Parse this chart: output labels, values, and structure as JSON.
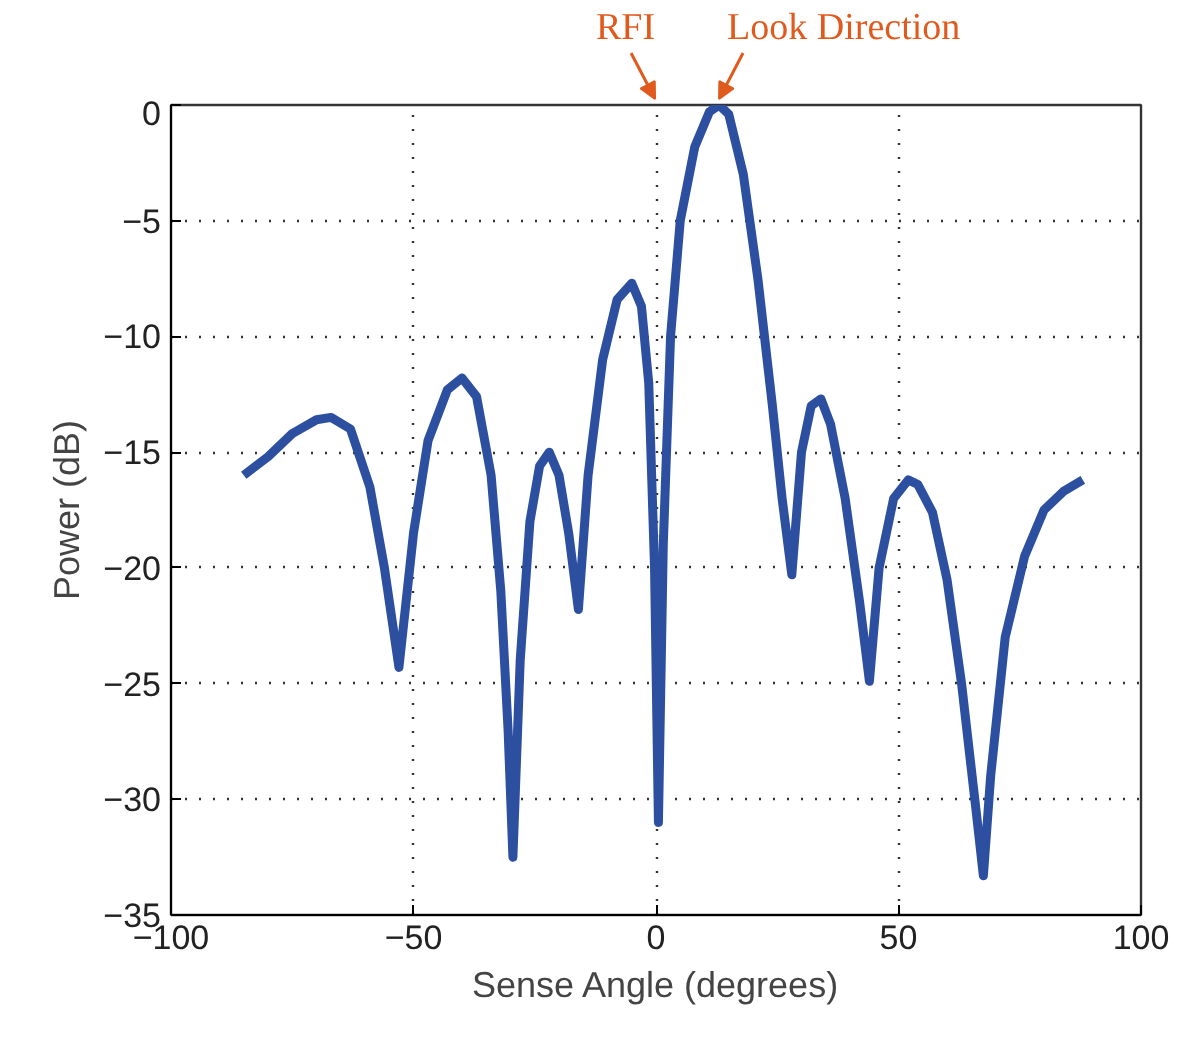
{
  "chart_data": {
    "type": "line",
    "xlabel": "Sense Angle (degrees)",
    "ylabel": "Power (dB)",
    "xlim": [
      -100,
      100
    ],
    "xticks": [
      -100,
      -50,
      0,
      50,
      100
    ],
    "ylim": [
      -35,
      0
    ],
    "yticks": [
      -35,
      -30,
      -25,
      -20,
      -15,
      -10,
      -5,
      0
    ],
    "grid": true,
    "marker": "none",
    "line_style": "solid",
    "annotations": [
      "RFI",
      {
        "text": "Look Direction",
        "x": 13,
        "y": 0
      }
    ],
    "series": [
      {
        "color": "#2c4fa0",
        "x": [
          -85,
          -80,
          -75,
          -70,
          -67,
          -63,
          -59,
          -56,
          -53,
          -50,
          -47,
          -43,
          -40,
          -37,
          -34,
          -32,
          -30.5,
          -29.5,
          -28,
          -26,
          -24,
          -22,
          -20,
          -18,
          -16,
          -14,
          -11,
          -8,
          -5,
          -3,
          -1.5,
          -0.3,
          0.5,
          1.5,
          3,
          5,
          8,
          11,
          13,
          15,
          18,
          21,
          24,
          26,
          28,
          30,
          32,
          34,
          36,
          39,
          42,
          44,
          46,
          49,
          52,
          54,
          57,
          60,
          63,
          66,
          67.5,
          69,
          72,
          76,
          80,
          84,
          88
        ],
        "values": [
          -16,
          -15.2,
          -14.2,
          -13.6,
          -13.5,
          -14,
          -16.5,
          -20,
          -24.3,
          -18.5,
          -14.5,
          -12.3,
          -11.8,
          -12.6,
          -16,
          -21,
          -27,
          -32.5,
          -24,
          -18,
          -15.6,
          -15,
          -16,
          -18.5,
          -21.8,
          -16,
          -11,
          -8.4,
          -7.7,
          -8.7,
          -12,
          -20,
          -31,
          -19,
          -10,
          -5,
          -1.8,
          -0.3,
          0,
          -0.4,
          -3,
          -7.5,
          -13,
          -17,
          -20.3,
          -15,
          -13,
          -12.7,
          -13.8,
          -17,
          -21.5,
          -24.9,
          -20,
          -17,
          -16.2,
          -16.4,
          -17.6,
          -20.5,
          -25,
          -30.5,
          -33.3,
          -29,
          -23,
          -19.5,
          -17.5,
          -16.7,
          -16.2
        ]
      }
    ]
  }
}
